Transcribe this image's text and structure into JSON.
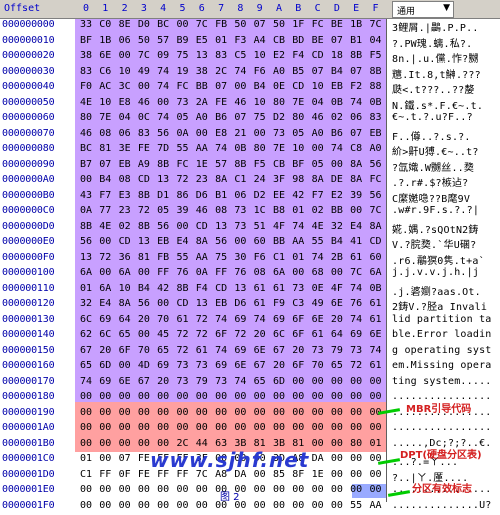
{
  "header": {
    "offset_label": "Offset",
    "columns": [
      "0",
      "1",
      "2",
      "3",
      "4",
      "5",
      "6",
      "7",
      "8",
      "9",
      "A",
      "B",
      "C",
      "D",
      "E",
      "F"
    ],
    "text_dropdown": "通用",
    "dropdown_icon": "triangle-down-icon"
  },
  "rows": [
    {
      "addr": "000000000",
      "hex": [
        "33",
        "C0",
        "8E",
        "D0",
        "BC",
        "00",
        "7C",
        "FB",
        "50",
        "07",
        "50",
        "1F",
        "FC",
        "BE",
        "1B",
        "7C"
      ],
      "text": "3鲤屑.|鸓.P.P.."
    },
    {
      "addr": "000000010",
      "hex": [
        "BF",
        "1B",
        "06",
        "50",
        "57",
        "B9",
        "E5",
        "01",
        "F3",
        "A4",
        "CB",
        "BD",
        "BE",
        "07",
        "B1",
        "04"
      ],
      "text": "?.PW瑰.螭.私?."
    },
    {
      "addr": "000000020",
      "hex": [
        "38",
        "6E",
        "00",
        "7C",
        "09",
        "75",
        "13",
        "83",
        "C5",
        "10",
        "E2",
        "F4",
        "CD",
        "18",
        "8B",
        "F5"
      ],
      "text": "8n.|.u.儻.怍?嬲"
    },
    {
      "addr": "000000030",
      "hex": [
        "83",
        "C6",
        "10",
        "49",
        "74",
        "19",
        "38",
        "2C",
        "74",
        "F6",
        "A0",
        "B5",
        "07",
        "B4",
        "07",
        "8B"
      ],
      "text": "兤.It.8,t鰰.???"
    },
    {
      "addr": "000000040",
      "hex": [
        "F0",
        "AC",
        "3C",
        "00",
        "74",
        "FC",
        "BB",
        "07",
        "00",
        "B4",
        "0E",
        "CD",
        "10",
        "EB",
        "F2",
        "88"
      ],
      "text": "瓞<.t???..??嫠"
    },
    {
      "addr": "000000050",
      "hex": [
        "4E",
        "10",
        "E8",
        "46",
        "00",
        "73",
        "2A",
        "FE",
        "46",
        "10",
        "80",
        "7E",
        "04",
        "0B",
        "74",
        "0B"
      ],
      "text": "N.鐵.s*.F.€~.t."
    },
    {
      "addr": "000000060",
      "hex": [
        "80",
        "7E",
        "04",
        "0C",
        "74",
        "05",
        "A0",
        "B6",
        "07",
        "75",
        "D2",
        "80",
        "46",
        "02",
        "06",
        "83"
      ],
      "text": "€~.t.?.u?F..?"
    },
    {
      "addr": "000000070",
      "hex": [
        "46",
        "08",
        "06",
        "83",
        "56",
        "0A",
        "00",
        "E8",
        "21",
        "00",
        "73",
        "05",
        "A0",
        "B6",
        "07",
        "EB"
      ],
      "text": "F..僔..?.s.?."
    },
    {
      "addr": "000000080",
      "hex": [
        "BC",
        "81",
        "3E",
        "FE",
        "7D",
        "55",
        "AA",
        "74",
        "0B",
        "80",
        "7E",
        "10",
        "00",
        "74",
        "C8",
        "A0"
      ],
      "text": "紒>鼾U猼.€~..t?"
    },
    {
      "addr": "000000090",
      "hex": [
        "B7",
        "07",
        "EB",
        "A9",
        "8B",
        "FC",
        "1E",
        "57",
        "8B",
        "F5",
        "CB",
        "BF",
        "05",
        "00",
        "8A",
        "56"
      ],
      "text": "?氙嬂.W嬲丝..奦"
    },
    {
      "addr": "0000000A0",
      "hex": [
        "00",
        "B4",
        "08",
        "CD",
        "13",
        "72",
        "23",
        "8A",
        "C1",
        "24",
        "3F",
        "98",
        "8A",
        "DE",
        "8A",
        "FC"
      ],
      "text": ".?.r#.$?槉迠?"
    },
    {
      "addr": "0000000B0",
      "hex": [
        "43",
        "F7",
        "E3",
        "8B",
        "D1",
        "86",
        "D6",
        "B1",
        "06",
        "D2",
        "EE",
        "42",
        "F7",
        "E2",
        "39",
        "56"
      ],
      "text": "C縻嬔喼??B麾9V"
    },
    {
      "addr": "0000000C0",
      "hex": [
        "0A",
        "77",
        "23",
        "72",
        "05",
        "39",
        "46",
        "08",
        "73",
        "1C",
        "B8",
        "01",
        "02",
        "BB",
        "00",
        "7C"
      ],
      "text": ".w#r.9F.s.?.?|"
    },
    {
      "addr": "0000000D0",
      "hex": [
        "8B",
        "4E",
        "02",
        "8B",
        "56",
        "00",
        "CD",
        "13",
        "73",
        "51",
        "4F",
        "74",
        "4E",
        "32",
        "E4",
        "8A"
      ],
      "text": "婲.媀.?sQOtN2鋳"
    },
    {
      "addr": "0000000E0",
      "hex": [
        "56",
        "00",
        "CD",
        "13",
        "EB",
        "E4",
        "8A",
        "56",
        "00",
        "60",
        "BB",
        "AA",
        "55",
        "B4",
        "41",
        "CD"
      ],
      "text": "V.?脘奦.`华U碅?"
    },
    {
      "addr": "0000000F0",
      "hex": [
        "13",
        "72",
        "36",
        "81",
        "FB",
        "55",
        "AA",
        "75",
        "30",
        "F6",
        "C1",
        "01",
        "74",
        "2B",
        "61",
        "60"
      ],
      "text": ".r6.鸘猽0隽.t+a`"
    },
    {
      "addr": "000000100",
      "hex": [
        "6A",
        "00",
        "6A",
        "00",
        "FF",
        "76",
        "0A",
        "FF",
        "76",
        "08",
        "6A",
        "00",
        "68",
        "00",
        "7C",
        "6A"
      ],
      "text": "j.j.v.v.j.h.|j"
    },
    {
      "addr": "000000110",
      "hex": [
        "01",
        "6A",
        "10",
        "B4",
        "42",
        "8B",
        "F4",
        "CD",
        "13",
        "61",
        "61",
        "73",
        "0E",
        "4F",
        "74",
        "0B"
      ],
      "text": ".j.碆嬼?aas.Ot."
    },
    {
      "addr": "000000120",
      "hex": [
        "32",
        "E4",
        "8A",
        "56",
        "00",
        "CD",
        "13",
        "EB",
        "D6",
        "61",
        "F9",
        "C3",
        "49",
        "6E",
        "76",
        "61"
      ],
      "text": "2鋳V.?胫a Invali"
    },
    {
      "addr": "000000130",
      "hex": [
        "6C",
        "69",
        "64",
        "20",
        "70",
        "61",
        "72",
        "74",
        "69",
        "74",
        "69",
        "6F",
        "6E",
        "20",
        "74",
        "61"
      ],
      "text": "lid partition ta"
    },
    {
      "addr": "000000140",
      "hex": [
        "62",
        "6C",
        "65",
        "00",
        "45",
        "72",
        "72",
        "6F",
        "72",
        "20",
        "6C",
        "6F",
        "61",
        "64",
        "69",
        "6E"
      ],
      "text": "ble.Error loadin"
    },
    {
      "addr": "000000150",
      "hex": [
        "67",
        "20",
        "6F",
        "70",
        "65",
        "72",
        "61",
        "74",
        "69",
        "6E",
        "67",
        "20",
        "73",
        "79",
        "73",
        "74"
      ],
      "text": "g operating syst"
    },
    {
      "addr": "000000160",
      "hex": [
        "65",
        "6D",
        "00",
        "4D",
        "69",
        "73",
        "73",
        "69",
        "6E",
        "67",
        "20",
        "6F",
        "70",
        "65",
        "72",
        "61"
      ],
      "text": "em.Missing opera"
    },
    {
      "addr": "000000170",
      "hex": [
        "74",
        "69",
        "6E",
        "67",
        "20",
        "73",
        "79",
        "73",
        "74",
        "65",
        "6D",
        "00",
        "00",
        "00",
        "00",
        "00"
      ],
      "text": "ting system....."
    },
    {
      "addr": "000000180",
      "hex": [
        "00",
        "00",
        "00",
        "00",
        "00",
        "00",
        "00",
        "00",
        "00",
        "00",
        "00",
        "00",
        "00",
        "00",
        "00",
        "00"
      ],
      "text": "................"
    },
    {
      "addr": "000000190",
      "hex": [
        "00",
        "00",
        "00",
        "00",
        "00",
        "00",
        "00",
        "00",
        "00",
        "00",
        "00",
        "00",
        "00",
        "00",
        "00",
        "00"
      ],
      "text": "................"
    },
    {
      "addr": "0000001A0",
      "hex": [
        "00",
        "00",
        "00",
        "00",
        "00",
        "00",
        "00",
        "00",
        "00",
        "00",
        "00",
        "00",
        "00",
        "00",
        "00",
        "00"
      ],
      "text": "................"
    },
    {
      "addr": "0000001B0",
      "hex": [
        "00",
        "00",
        "00",
        "00",
        "00",
        "2C",
        "44",
        "63",
        "3B",
        "81",
        "3B",
        "81",
        "00",
        "00",
        "80",
        "01"
      ],
      "text": ".....,Dc;?;?..€."
    },
    {
      "addr": "0000001C0",
      "hex": [
        "01",
        "00",
        "07",
        "FE",
        "FF",
        "FF",
        "3F",
        "00",
        "00",
        "00",
        "3D",
        "A8",
        "DA",
        "00",
        "00",
        "00"
      ],
      "text": "...?.=ㄚ..."
    },
    {
      "addr": "0000001D0",
      "hex": [
        "C1",
        "FF",
        "0F",
        "FE",
        "FF",
        "FF",
        "7C",
        "A8",
        "DA",
        "00",
        "85",
        "8F",
        "1E",
        "00",
        "00",
        "00"
      ],
      "text": "?..|ㄚ.厪...."
    },
    {
      "addr": "0000001E0",
      "hex": [
        "00",
        "00",
        "00",
        "00",
        "00",
        "00",
        "00",
        "00",
        "00",
        "00",
        "00",
        "00",
        "00",
        "00",
        "00",
        "00"
      ],
      "text": "................"
    },
    {
      "addr": "0000001F0",
      "hex": [
        "00",
        "00",
        "00",
        "00",
        "00",
        "00",
        "00",
        "00",
        "00",
        "00",
        "00",
        "00",
        "00",
        "00",
        "55",
        "AA"
      ],
      "text": "..............U?"
    }
  ],
  "annotations": {
    "mbr_code": "MBR引导代码",
    "partition_table": "DPT(硬盘分区表)",
    "signature": "分区有效标志",
    "watermark": "www.sjhf.net",
    "figure_label": "图 2"
  },
  "colors": {
    "code_region": "#c8a0ff",
    "partition_region": "#ffa0a0",
    "signature_region": "#99aaff",
    "arrow": "#00cc00",
    "annotation_text": "#d42020"
  }
}
